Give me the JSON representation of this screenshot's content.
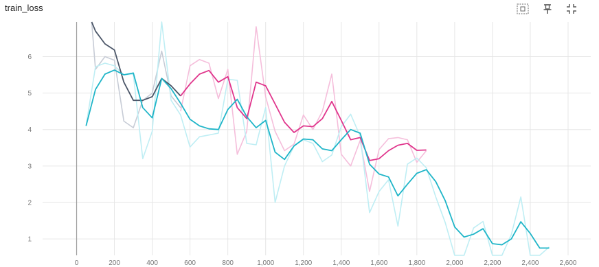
{
  "card": {
    "title": "train_loss",
    "icons": [
      "fit-domain-icon",
      "pin-icon",
      "collapse-icon"
    ]
  },
  "colors": {
    "teal": "#1fb5c8",
    "teal_light": "#bfeef4",
    "magenta": "#e0358c",
    "magenta_light": "#f5bedb",
    "dark": "#4b5668",
    "dark_light": "#c7ccd6",
    "grid": "#e6e6e6",
    "axis": "#9e9e9e"
  },
  "chart_data": {
    "type": "line",
    "title": "train_loss",
    "xlabel": "",
    "ylabel": "",
    "xlim": [
      -180,
      2720
    ],
    "ylim": [
      0.55,
      6.95
    ],
    "grid": true,
    "x_ticks": [
      0,
      200,
      400,
      600,
      800,
      1000,
      1200,
      1400,
      1600,
      1800,
      2000,
      2200,
      2400,
      2600
    ],
    "x_tick_labels": [
      "0",
      "200",
      "400",
      "600",
      "800",
      "1,000",
      "1,200",
      "1,400",
      "1,600",
      "1,800",
      "2,000",
      "2,200",
      "2,400",
      "2,600"
    ],
    "y_ticks": [
      1,
      2,
      3,
      4,
      5,
      6
    ],
    "y_tick_labels": [
      "1",
      "2",
      "3",
      "4",
      "5",
      "6"
    ],
    "series": [
      {
        "color_key": "dark",
        "smoothed": [
          [
            80,
            7.6
          ],
          [
            100,
            6.7
          ],
          [
            150,
            6.35
          ],
          [
            200,
            6.18
          ],
          [
            250,
            5.3
          ],
          [
            300,
            4.8
          ],
          [
            350,
            4.8
          ],
          [
            400,
            4.9
          ],
          [
            450,
            5.4
          ],
          [
            500,
            5.2
          ],
          [
            550,
            4.92
          ]
        ],
        "raw": [
          [
            80,
            7.5
          ],
          [
            100,
            5.65
          ],
          [
            150,
            6.0
          ],
          [
            200,
            5.9
          ],
          [
            250,
            4.23
          ],
          [
            300,
            4.05
          ],
          [
            350,
            4.8
          ],
          [
            400,
            5.0
          ],
          [
            450,
            6.15
          ],
          [
            500,
            4.92
          ],
          [
            550,
            4.6
          ]
        ]
      },
      {
        "color_key": "magenta",
        "smoothed": [
          [
            550,
            4.92
          ],
          [
            600,
            5.25
          ],
          [
            650,
            5.52
          ],
          [
            700,
            5.62
          ],
          [
            750,
            5.3
          ],
          [
            800,
            5.45
          ],
          [
            850,
            4.6
          ],
          [
            900,
            4.3
          ],
          [
            950,
            5.3
          ],
          [
            1000,
            5.2
          ],
          [
            1050,
            4.7
          ],
          [
            1100,
            4.2
          ],
          [
            1150,
            3.92
          ],
          [
            1200,
            4.1
          ],
          [
            1250,
            4.08
          ],
          [
            1300,
            4.3
          ],
          [
            1350,
            4.77
          ],
          [
            1400,
            4.25
          ],
          [
            1450,
            3.72
          ],
          [
            1500,
            3.78
          ],
          [
            1550,
            3.15
          ],
          [
            1600,
            3.2
          ],
          [
            1650,
            3.42
          ],
          [
            1700,
            3.57
          ],
          [
            1750,
            3.62
          ],
          [
            1800,
            3.43
          ],
          [
            1850,
            3.44
          ]
        ],
        "raw": [
          [
            550,
            4.5
          ],
          [
            600,
            5.75
          ],
          [
            650,
            5.92
          ],
          [
            700,
            5.82
          ],
          [
            750,
            4.85
          ],
          [
            800,
            5.65
          ],
          [
            850,
            3.32
          ],
          [
            900,
            3.95
          ],
          [
            950,
            6.82
          ],
          [
            1000,
            4.9
          ],
          [
            1050,
            3.95
          ],
          [
            1100,
            3.42
          ],
          [
            1150,
            3.6
          ],
          [
            1200,
            4.4
          ],
          [
            1250,
            4.0
          ],
          [
            1300,
            4.5
          ],
          [
            1350,
            5.52
          ],
          [
            1400,
            3.32
          ],
          [
            1450,
            3.0
          ],
          [
            1500,
            3.7
          ],
          [
            1550,
            2.3
          ],
          [
            1600,
            3.45
          ],
          [
            1650,
            3.75
          ],
          [
            1700,
            3.78
          ],
          [
            1750,
            3.72
          ],
          [
            1800,
            3.1
          ],
          [
            1850,
            3.42
          ]
        ]
      },
      {
        "color_key": "teal",
        "smoothed": [
          [
            50,
            4.1
          ],
          [
            100,
            5.1
          ],
          [
            150,
            5.52
          ],
          [
            200,
            5.63
          ],
          [
            250,
            5.5
          ],
          [
            300,
            5.55
          ],
          [
            350,
            4.6
          ],
          [
            400,
            4.32
          ],
          [
            450,
            5.4
          ],
          [
            500,
            5.12
          ],
          [
            550,
            4.72
          ],
          [
            600,
            4.28
          ],
          [
            650,
            4.1
          ],
          [
            700,
            4.02
          ],
          [
            750,
            4.0
          ],
          [
            800,
            4.55
          ],
          [
            850,
            4.83
          ],
          [
            900,
            4.35
          ],
          [
            950,
            4.05
          ],
          [
            1000,
            4.25
          ],
          [
            1050,
            3.38
          ],
          [
            1100,
            3.18
          ],
          [
            1150,
            3.55
          ],
          [
            1200,
            3.74
          ],
          [
            1250,
            3.72
          ],
          [
            1300,
            3.47
          ],
          [
            1350,
            3.42
          ],
          [
            1400,
            3.72
          ],
          [
            1450,
            4.0
          ],
          [
            1500,
            3.9
          ],
          [
            1550,
            3.05
          ],
          [
            1600,
            2.78
          ],
          [
            1650,
            2.7
          ],
          [
            1700,
            2.18
          ],
          [
            1750,
            2.5
          ],
          [
            1800,
            2.8
          ],
          [
            1850,
            2.9
          ],
          [
            1900,
            2.57
          ],
          [
            1950,
            2.05
          ],
          [
            2000,
            1.33
          ],
          [
            2050,
            1.05
          ],
          [
            2100,
            1.13
          ],
          [
            2150,
            1.28
          ],
          [
            2200,
            0.87
          ],
          [
            2250,
            0.84
          ],
          [
            2300,
            1.0
          ],
          [
            2350,
            1.47
          ],
          [
            2400,
            1.15
          ],
          [
            2450,
            0.75
          ],
          [
            2500,
            0.75
          ]
        ],
        "raw": [
          [
            50,
            4.1
          ],
          [
            100,
            5.72
          ],
          [
            150,
            5.82
          ],
          [
            200,
            5.75
          ],
          [
            250,
            5.5
          ],
          [
            300,
            5.52
          ],
          [
            350,
            3.2
          ],
          [
            400,
            3.95
          ],
          [
            450,
            7.0
          ],
          [
            500,
            4.8
          ],
          [
            550,
            4.4
          ],
          [
            600,
            3.52
          ],
          [
            650,
            3.8
          ],
          [
            700,
            3.85
          ],
          [
            750,
            3.9
          ],
          [
            800,
            5.38
          ],
          [
            850,
            5.35
          ],
          [
            900,
            3.62
          ],
          [
            950,
            3.58
          ],
          [
            1000,
            4.6
          ],
          [
            1050,
            2.0
          ],
          [
            1100,
            3.0
          ],
          [
            1150,
            3.55
          ],
          [
            1200,
            3.72
          ],
          [
            1250,
            3.62
          ],
          [
            1300,
            3.12
          ],
          [
            1350,
            3.3
          ],
          [
            1400,
            4.08
          ],
          [
            1450,
            4.42
          ],
          [
            1500,
            3.82
          ],
          [
            1550,
            1.72
          ],
          [
            1600,
            2.3
          ],
          [
            1650,
            2.62
          ],
          [
            1700,
            1.35
          ],
          [
            1750,
            3.05
          ],
          [
            1800,
            3.22
          ],
          [
            1850,
            2.95
          ],
          [
            1900,
            2.15
          ],
          [
            1950,
            1.45
          ],
          [
            2000,
            0.55
          ],
          [
            2050,
            0.55
          ],
          [
            2100,
            1.3
          ],
          [
            2150,
            1.48
          ],
          [
            2200,
            0.5
          ],
          [
            2250,
            0.5
          ],
          [
            2300,
            1.12
          ],
          [
            2350,
            2.15
          ],
          [
            2400,
            0.55
          ],
          [
            2450,
            0.42
          ],
          [
            2500,
            0.78
          ]
        ]
      }
    ]
  }
}
